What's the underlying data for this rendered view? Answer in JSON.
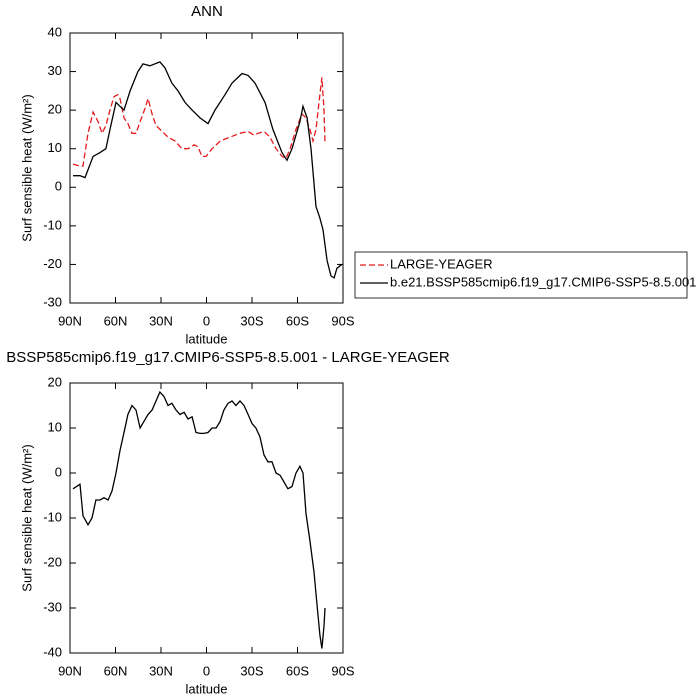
{
  "chart_data": [
    {
      "type": "line",
      "title": "ANN",
      "xlabel": "latitude",
      "ylabel": "Surf sensible heat (W/m²)",
      "xlim": [
        90,
        -90
      ],
      "xticks": [
        {
          "value": 90,
          "label": "90N"
        },
        {
          "value": 60,
          "label": "60N"
        },
        {
          "value": 30,
          "label": "30N"
        },
        0,
        {
          "value": -30,
          "label": "30S"
        },
        {
          "value": -60,
          "label": "60S"
        },
        {
          "value": -90,
          "label": "90S"
        }
      ],
      "ylim": [
        -30,
        40
      ],
      "yticks": [
        40,
        30,
        20,
        10,
        0,
        -10,
        -20,
        -30
      ],
      "legend": "right",
      "series": [
        {
          "name": "LARGE-YEAGER",
          "color": "#e41a1c",
          "dash": true,
          "x": [
            88.0,
            83.4,
            81.4,
            78.1,
            74.8,
            71.5,
            68.9,
            66.3,
            63.6,
            61.0,
            58.4,
            57.0,
            54.4,
            51.8,
            49.1,
            46.5,
            43.8,
            40.5,
            38.6,
            35.9,
            33.3,
            29.3,
            25.4,
            20.8,
            16.2,
            12.2,
            8.2,
            5.6,
            3.0,
            0.3,
            -3.7,
            -9.0,
            -15.5,
            -22.1,
            -27.4,
            -31.3,
            -34.0,
            -37.9,
            -41.9,
            -45.8,
            -49.8,
            -52.4,
            -55.1,
            -59.0,
            -63.0,
            -65.6,
            -68.2,
            -70.2,
            -72.2,
            -74.2,
            -76.1,
            -77.5,
            -78.1
          ],
          "values": [
            6,
            5.5,
            5.5,
            14,
            19.5,
            17,
            14,
            16,
            20,
            23.5,
            24,
            23,
            18,
            16.5,
            14,
            14,
            17,
            20.5,
            23,
            19,
            16,
            14.5,
            13,
            12,
            10,
            10,
            11,
            10.5,
            8,
            8,
            10,
            12,
            13,
            14,
            14.5,
            13.5,
            14,
            14.5,
            13,
            10,
            8,
            7.5,
            10,
            15,
            19,
            18,
            15,
            12,
            15,
            22,
            28.5,
            20,
            11.5
          ]
        },
        {
          "name": "b.e21.BSSP585cmip6.f19_g17.CMIP6-SSP5-8.5.001",
          "color": "#000000",
          "dash": false,
          "x": [
            88.0,
            83.4,
            80.1,
            74.8,
            70.2,
            66.3,
            63.6,
            59.7,
            57.0,
            54.4,
            50.4,
            45.2,
            41.9,
            37.3,
            30.7,
            27.4,
            22.8,
            18.8,
            14.2,
            9.5,
            4.3,
            -1.0,
            -5.6,
            -12.2,
            -16.8,
            -20.8,
            -23.4,
            -27.4,
            -32.0,
            -38.6,
            -43.8,
            -49.8,
            -53.1,
            -56.4,
            -61.6,
            -63.6,
            -66.3,
            -68.9,
            -72.2,
            -74.8,
            -76.8,
            -79.5,
            -82.1,
            -84.1,
            -86.0,
            -89.3
          ],
          "values": [
            3,
            3,
            2.5,
            8,
            9,
            10,
            15,
            22,
            21,
            20,
            25,
            30,
            32,
            31.5,
            32.5,
            31,
            27,
            25,
            22,
            20,
            18,
            16.5,
            20,
            24,
            27,
            28.5,
            29.5,
            29,
            27,
            22,
            15,
            9,
            7,
            10,
            17,
            21,
            18,
            10,
            -5,
            -8,
            -11,
            -19,
            -23,
            -23.5,
            -21,
            -20
          ]
        }
      ]
    },
    {
      "type": "line",
      "title": "BSSP585cmip6.f19_g17.CMIP6-SSP5-8.5.001 - LARGE-YEAGER",
      "xlabel": "latitude",
      "ylabel": "Surf sensible heat (W/m²)",
      "xlim": [
        90,
        -90
      ],
      "xticks": [
        {
          "value": 90,
          "label": "90N"
        },
        {
          "value": 60,
          "label": "60N"
        },
        {
          "value": 30,
          "label": "30N"
        },
        0,
        {
          "value": -30,
          "label": "30S"
        },
        {
          "value": -60,
          "label": "60S"
        },
        {
          "value": -90,
          "label": "90S"
        }
      ],
      "ylim": [
        -40,
        20
      ],
      "yticks": [
        20,
        10,
        0,
        -10,
        -20,
        -30,
        -40
      ],
      "series": [
        {
          "color": "#000000",
          "dash": false,
          "x": [
            88.0,
            83.4,
            81.4,
            78.1,
            75.5,
            72.9,
            70.2,
            67.6,
            64.9,
            62.3,
            59.7,
            57.0,
            54.4,
            51.8,
            49.1,
            46.5,
            43.8,
            41.2,
            38.6,
            35.9,
            33.3,
            30.7,
            28.0,
            25.4,
            22.8,
            20.1,
            17.5,
            14.8,
            12.2,
            9.5,
            6.9,
            4.3,
            1.7,
            -1.0,
            -3.7,
            -6.3,
            -9.0,
            -11.5,
            -14.2,
            -16.8,
            -19.4,
            -22.1,
            -24.7,
            -27.4,
            -30.0,
            -32.6,
            -35.3,
            -37.9,
            -40.5,
            -43.2,
            -45.8,
            -48.5,
            -51.1,
            -53.7,
            -56.4,
            -59.0,
            -61.6,
            -63.6,
            -65.6,
            -68.2,
            -70.9,
            -72.8,
            -74.8,
            -76.1,
            -77.5,
            -78.1
          ],
          "values": [
            -3.5,
            -2.5,
            -9.5,
            -11.5,
            -10,
            -6,
            -6,
            -5.5,
            -6,
            -4,
            0,
            5,
            9,
            13,
            15,
            14,
            10,
            11.5,
            13,
            14,
            16,
            18,
            17,
            15,
            15.5,
            14,
            13,
            13.5,
            12,
            12.5,
            9,
            8.8,
            8.8,
            9,
            10,
            10,
            11.5,
            14,
            15.5,
            16,
            15,
            16,
            15,
            13,
            11,
            10,
            8,
            4,
            2.5,
            2.5,
            0,
            -0.5,
            -2,
            -3.5,
            -3,
            0,
            1.5,
            0,
            -9,
            -15,
            -22,
            -29,
            -36,
            -39,
            -34,
            -30
          ]
        }
      ]
    }
  ]
}
